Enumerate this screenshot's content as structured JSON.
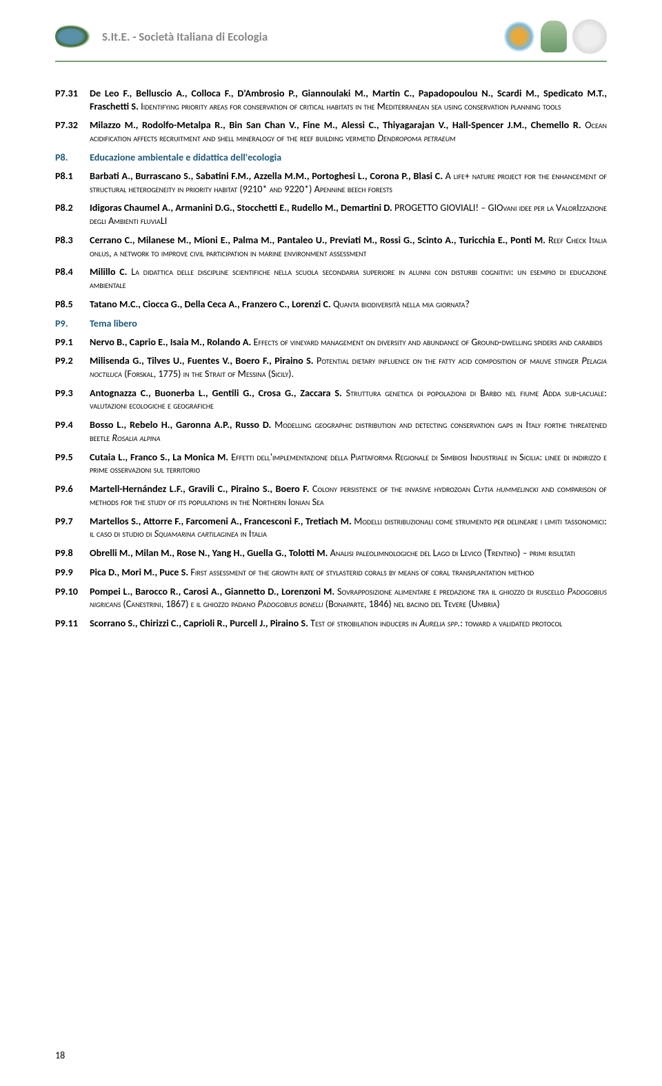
{
  "header": {
    "title": "S.It.E. - Società Italiana di Ecologia"
  },
  "entries": [
    {
      "id": "P7.31",
      "authors": "De Leo F., Belluscio A., Colloca F., D'Ambrosio P., Giannoulaki M., Martin C., Papadopoulou N., Scardi M., Spedicato M.T., Fraschetti S.",
      "text_pre": " I",
      "text_sc": "identifying priority areas for conservation of critical habitats in the ",
      "text_mid": "M",
      "text_sc2": "editerranean sea using conservation planning tools",
      "text_post": ""
    },
    {
      "id": "P7.32",
      "authors": "Milazzo M., Rodolfo-Metalpa R., Bin San Chan V., Fine M., Alessi C., Thiyagarajan V., Hall-Spencer J.M., Chemello R.",
      "text_pre": " O",
      "text_sc": "cean acidification affects recruitment and shell mineralogy of the reef building vermetid ",
      "ital": "Dendropoma petraeum"
    }
  ],
  "section_p8": {
    "id": "P8.",
    "title": "Educazione ambientale e didattica dell'ecologia"
  },
  "p8": [
    {
      "id": "P8.1",
      "authors": "Barbati A., Burrascano S., Sabatini F.M., Azzella M.M., Portoghesi L., Corona P., Blasi C.",
      "rest": " A <span class='sc'>life</span>+ <span class='sc'>nature project for the enhancement of structural heterogeneity in priority habitat</span> (9210* <span class='sc'>and</span> 9220*) A<span class='sc'>pennine beech forests</span>"
    },
    {
      "id": "P8.2",
      "authors": "Idigoras Chaumel A., Armanini D.G., Stocchetti E., Rudello M., Demartini D.",
      "rest": " PROGETTO GIOVIALI! – GIO<span class='sc'>vani idee per la </span>V<span class='sc'>alor</span>I<span class='sc'>zzazione degli </span>A<span class='sc'>mbienti fluvia</span>LI"
    },
    {
      "id": "P8.3",
      "authors": "Cerrano C., Milanese M., Mioni E., Palma M., Pantaleo U., Previati M., Rossi G., Scinto A., Turicchia E., Ponti M.",
      "rest": " R<span class='sc'>eef </span>C<span class='sc'>heck </span>I<span class='sc'>talia onlus, a network to improve civil participation in marine environment assessment</span>"
    },
    {
      "id": "P8.4",
      "authors": "Milillo C.",
      "rest": " L<span class='sc'>a didattica delle discipline scientifiche nella scuola secondaria superiore in alunni con disturbi cognitivi: un esempio di educazione ambientale</span>"
    },
    {
      "id": "P8.5",
      "authors": "Tatano M.C., Ciocca G., Della Ceca A., Franzero C., Lorenzi C.",
      "rest": " Q<span class='sc'>uanta biodiversità nella mia giornata?</span>"
    }
  ],
  "section_p9": {
    "id": "P9.",
    "title": "Tema libero"
  },
  "p9": [
    {
      "id": "P9.1",
      "authors": "Nervo B., Caprio E., Isaia M., Rolando A.",
      "rest": " E<span class='sc'>ffects of vineyard management on diversity and abundance of </span>G<span class='sc'>round-dwelling spiders and carabids</span>"
    },
    {
      "id": "P9.2",
      "authors": "Milisenda G., Tilves U., Fuentes V., Boero F., Piraino S.",
      "rest": " P<span class='sc'>otential dietary influence on the fatty acid composition of mauve stinger </span><span class='ital'>P<span class='sc'>elagia noctiluca</span></span> (F<span class='sc'>orskal</span>, 1775) <span class='sc'>in the </span>S<span class='sc'>trait of </span>M<span class='sc'>essina </span>(S<span class='sc'>icily</span>)."
    },
    {
      "id": "P9.3",
      "authors": "Antognazza C., Buonerba L., Gentili G., Crosa G., Zaccara S.",
      "rest": " S<span class='sc'>truttura genetica di popolazioni di </span>B<span class='sc'>arbo nel fiume </span>A<span class='sc'>dda sub-lacuale: valutazioni ecologiche e geografiche</span>"
    },
    {
      "id": "P9.4",
      "authors": "Bosso L., Rebelo H., Garonna A.P., Russo D.",
      "rest": " M<span class='sc'>odelling geographic distribution and detecting conservation gaps in </span>I<span class='sc'>taly forthe threatened beetle </span><span class='ital'>R<span class='sc'>osalia alpina</span></span>"
    },
    {
      "id": "P9.5",
      "authors": "Cutaia L., Franco S., La Monica M.",
      "rest": " E<span class='sc'>ffetti dell'implementazione della </span>P<span class='sc'>iattaforma </span>R<span class='sc'>egionale di </span>S<span class='sc'>imbiosi </span>I<span class='sc'>ndustriale in </span>S<span class='sc'>icilia: linee di indirizzo e prime osservazioni sul territorio</span>"
    },
    {
      "id": "P9.6",
      "authors": "Martell-Hernández L.F., Gravili C., Piraino S., Boero F.",
      "rest": " C<span class='sc'>olony persistence of the invasive hydrozoan </span><span class='ital'>C<span class='sc'>lytia hummelincki</span></span> <span class='sc'>and comparison of methods for the study of its populations in the </span>N<span class='sc'>orthern </span>I<span class='sc'>onian </span>S<span class='sc'>ea</span>"
    },
    {
      "id": "P9.7",
      "authors": "Martellos S., Attorre F., Farcomeni A., Francesconi F., Tretiach M.",
      "rest": " M<span class='sc'>odelli distribuzionali come strumento per delineare i limiti tassonomici: il caso di studio di </span><span class='ital'>S<span class='sc'>quamarina cartilaginea</span></span> <span class='sc'>in </span>I<span class='sc'>talia</span>"
    },
    {
      "id": "P9.8",
      "authors": "Obrelli M., Milan M., Rose N., Yang H., Guella G., Tolotti M.",
      "rest": " A<span class='sc'>nalisi paleolimnologiche del </span>L<span class='sc'>ago di </span>L<span class='sc'>evico </span>(T<span class='sc'>rentino</span>) – <span class='sc'>primi risultati</span>"
    },
    {
      "id": "P9.9",
      "authors": "Pica D., Mori M., Puce S.",
      "rest": " F<span class='sc'>irst assessment of the growth rate of stylasterid corals by means of coral transplantation method</span>"
    },
    {
      "id": "P9.10",
      "authors": "Pompei L., Barocco R., Carosi A., Giannetto D., Lorenzoni M.",
      "rest": " S<span class='sc'>ovrapposizione alimentare e predazione tra il ghiozzo di ruscello </span><span class='ital'>P<span class='sc'>adogobius nigricans</span></span> (C<span class='sc'>anestrini</span>, 1867) <span class='sc'>e il ghiozzo padano </span><span class='ital'>P<span class='sc'>adogobius bonelli</span></span> (B<span class='sc'>onaparte</span>, 1846) <span class='sc'>nel bacino del </span>T<span class='sc'>evere </span>(U<span class='sc'>mbria</span>)"
    },
    {
      "id": "P9.11",
      "authors": "Scorrano S., Chirizzi C., Caprioli R., Purcell J., Piraino S.",
      "rest": " T<span class='sc'>est of strobilation inducers in </span><span class='ital'>A<span class='sc'>urelia spp.</span></span>: <span class='sc'>toward a validated protocol</span>"
    }
  ],
  "page_num": "18"
}
